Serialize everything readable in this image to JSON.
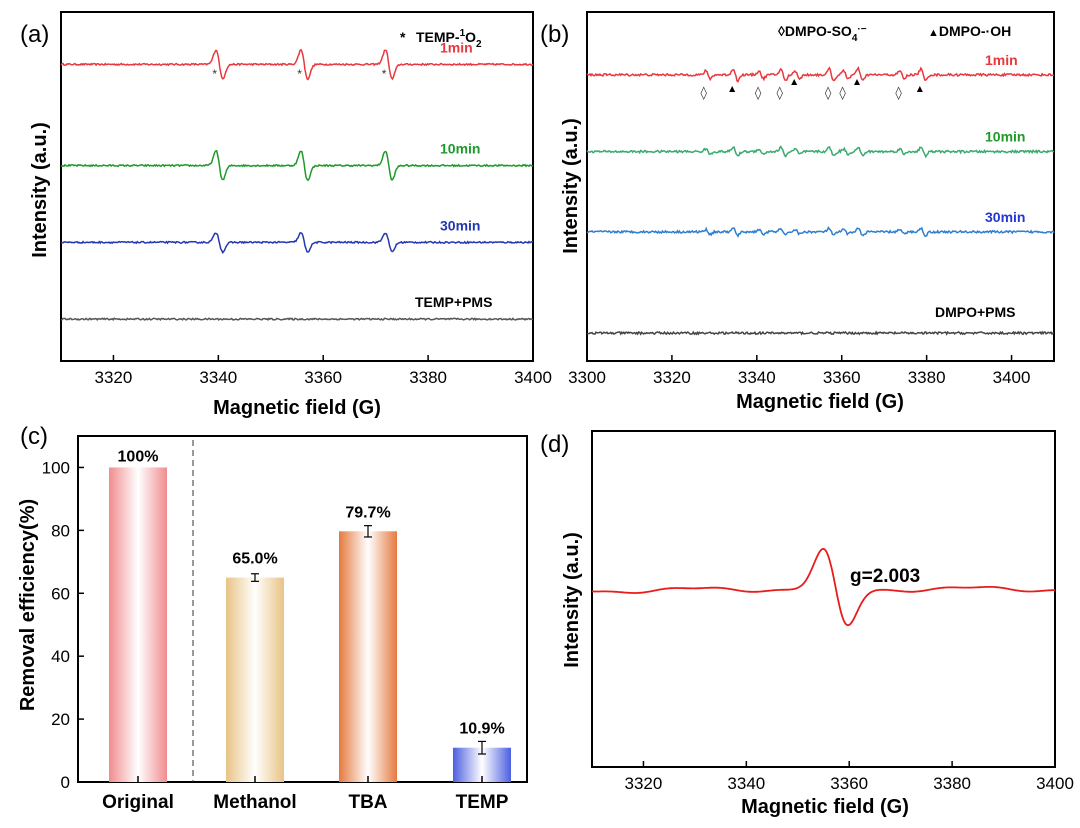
{
  "panels": {
    "a": {
      "letter": "(a)",
      "legend": {
        "marker": "*",
        "text": "TEMP-",
        "sup": "1",
        "text2": "O",
        "sub": "2"
      }
    },
    "b": {
      "letter": "(b)",
      "legend": {
        "diamond": "◊",
        "text1": "DMPO-SO",
        "sub1": "4",
        "sup1": "·−",
        "triangle": "▲",
        "text2": "DMPO-·OH"
      }
    },
    "c": {
      "letter": "(c)"
    },
    "d": {
      "letter": "(d)",
      "annotation": "g=2.003"
    }
  },
  "chart_data": [
    {
      "id": "a",
      "type": "line",
      "xlabel": "Magnetic field (G)",
      "ylabel": "Intensity (a.u.)",
      "xlim": [
        3310,
        3400
      ],
      "xticks": [
        3320,
        3340,
        3360,
        3380,
        3400
      ],
      "peak_markers_x": [
        3339.3,
        3355.5,
        3371.6
      ],
      "series": [
        {
          "name": "1min",
          "color": "#e8383d",
          "baseline": 0.85,
          "amplitude": 1.0,
          "peaks": [
            3340.2,
            3356.4,
            3372.5
          ]
        },
        {
          "name": "10min",
          "color": "#1f9a2a",
          "baseline": 0.56,
          "amplitude": 1.0,
          "peaks": [
            3340.2,
            3356.4,
            3372.5
          ]
        },
        {
          "name": "30min",
          "color": "#2338b0",
          "baseline": 0.34,
          "amplitude": 0.65,
          "peaks": [
            3340.2,
            3356.4,
            3372.5
          ]
        },
        {
          "name": "TEMP+PMS",
          "color": "#555555",
          "baseline": 0.12,
          "amplitude": 0.0,
          "peaks": []
        }
      ]
    },
    {
      "id": "b",
      "type": "line",
      "xlabel": "Magnetic field (G)",
      "ylabel": "Intensity (a.u.)",
      "xlim": [
        3300,
        3410
      ],
      "xticks": [
        3300,
        3320,
        3340,
        3360,
        3380,
        3400
      ],
      "diamond_markers_x": [
        3327.5,
        3340.3,
        3345.4,
        3356.8,
        3360.2,
        3373.4
      ],
      "triangle_markers_x": [
        3334.2,
        3348.8,
        3363.6,
        3378.4
      ],
      "series": [
        {
          "name": "1min",
          "color": "#e8383d",
          "baseline": 0.82,
          "amplitude": 1.0,
          "peaks": [
            3328.5,
            3335.0,
            3341.0,
            3346.2,
            3349.6,
            3357.6,
            3361.0,
            3364.4,
            3374.2,
            3379.2
          ]
        },
        {
          "name": "10min",
          "color": "#3aaa6e",
          "baseline": 0.6,
          "amplitude": 0.7,
          "peaks": [
            3328.5,
            3335.0,
            3341.0,
            3346.2,
            3349.6,
            3357.6,
            3361.0,
            3364.4,
            3374.2,
            3379.2
          ]
        },
        {
          "name": "30min",
          "color": "#2d7fd0",
          "baseline": 0.37,
          "amplitude": 0.6,
          "peaks": [
            3328.5,
            3335.0,
            3341.0,
            3346.2,
            3349.6,
            3357.6,
            3361.0,
            3364.4,
            3374.2,
            3379.2
          ]
        },
        {
          "name": "DMPO+PMS",
          "color": "#444444",
          "baseline": 0.08,
          "amplitude": 0.0,
          "peaks": []
        }
      ]
    },
    {
      "id": "c",
      "type": "bar",
      "ylabel": "Removal efficiency(%)",
      "ylim": [
        0,
        110
      ],
      "yticks": [
        0,
        20,
        40,
        60,
        80,
        100
      ],
      "categories": [
        "Original",
        "Methanol",
        "TBA",
        "TEMP"
      ],
      "values": [
        100,
        65.0,
        79.7,
        10.9
      ],
      "errors": [
        0,
        1.2,
        1.8,
        2.0
      ],
      "value_labels": [
        "100%",
        "65.0%",
        "79.7%",
        "10.9%"
      ],
      "colors": [
        "#f08c8e",
        "#e8c486",
        "#e57a3f",
        "#4c5fe0"
      ],
      "divider_after": 0
    },
    {
      "id": "d",
      "type": "line",
      "xlabel": "Magnetic field (G)",
      "ylabel": "Intensity (a.u.)",
      "xlim": [
        3310,
        3400
      ],
      "xticks": [
        3320,
        3340,
        3360,
        3380,
        3400
      ],
      "series": [
        {
          "name": "g=2.003",
          "color": "#e81c1c",
          "center": 3357.3
        }
      ]
    }
  ]
}
